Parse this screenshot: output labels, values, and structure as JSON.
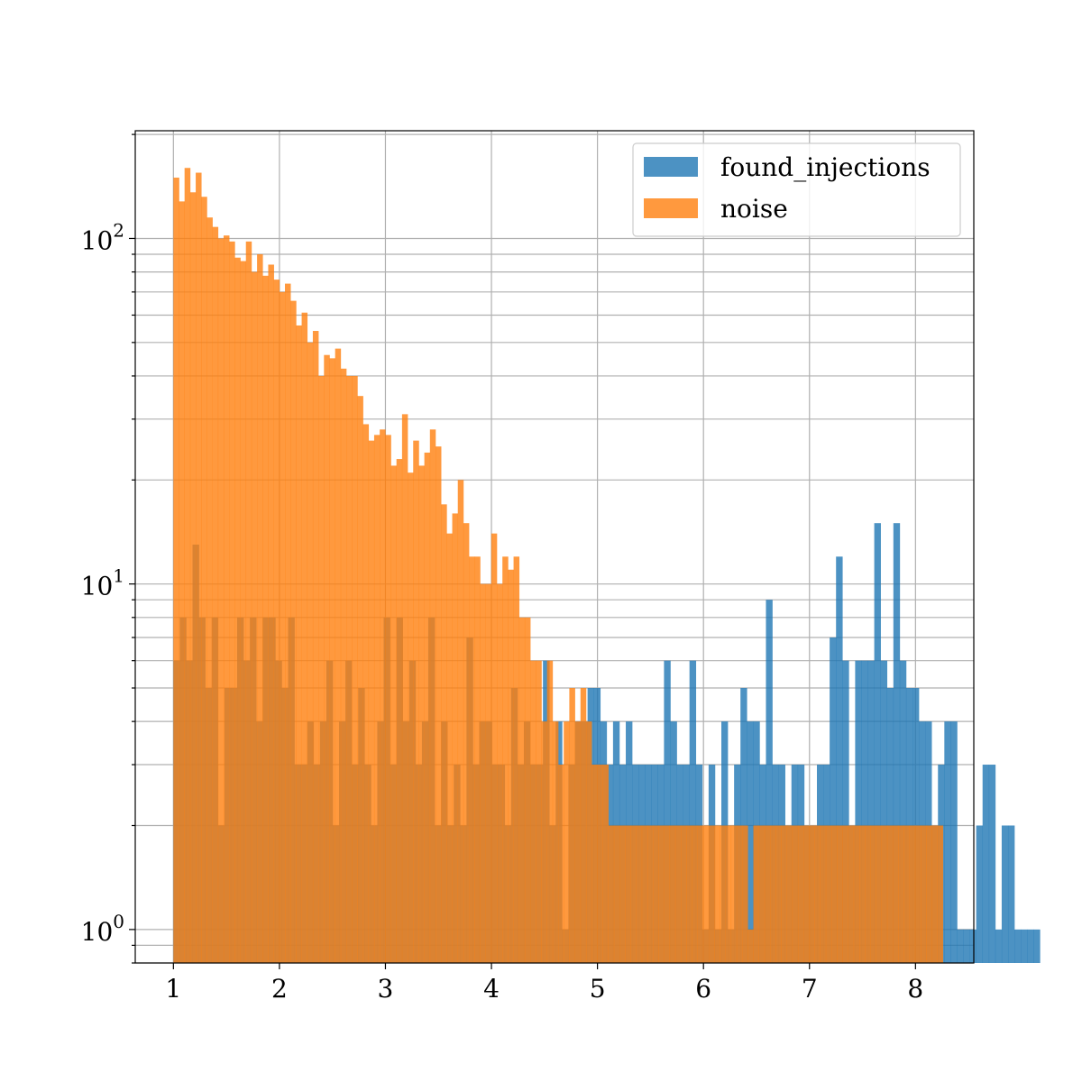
{
  "chart_data": {
    "type": "bar",
    "title": "",
    "xlabel": "",
    "ylabel": "",
    "xlim": [
      0.64,
      8.55
    ],
    "ylim": [
      0.8,
      205
    ],
    "yscale": "log",
    "grid": true,
    "legend_placement": "top-right",
    "x_ticks": [
      1,
      2,
      3,
      4,
      5,
      6,
      7,
      8
    ],
    "x_tick_labels": [
      "1",
      "2",
      "3",
      "4",
      "5",
      "6",
      "7",
      "8"
    ],
    "y_ticks": [
      1,
      10,
      100
    ],
    "y_tick_labels": [
      {
        "base": "10",
        "exp": "0"
      },
      {
        "base": "10",
        "exp": "1"
      },
      {
        "base": "10",
        "exp": "2"
      }
    ],
    "series": [
      {
        "name": "found_injections",
        "color": "#1f77b4",
        "alpha": 0.8,
        "bin_start": 1.0,
        "bin_width": 0.0601,
        "values": [
          6,
          8,
          6,
          13,
          8,
          5,
          8,
          2,
          5,
          5,
          8,
          6,
          8,
          4,
          8,
          8,
          6,
          5,
          8,
          3,
          3,
          4,
          3,
          4,
          6,
          2,
          4,
          6,
          3,
          5,
          3,
          2,
          4,
          8,
          3,
          8,
          4,
          6,
          3,
          4,
          8,
          2,
          4,
          2,
          3,
          2,
          7,
          3,
          4,
          4,
          3,
          3,
          2,
          5,
          3,
          4,
          3,
          3,
          6,
          2,
          4,
          1,
          3,
          4,
          4,
          5,
          5,
          4,
          3,
          4,
          3,
          4,
          3,
          3,
          3,
          3,
          3,
          6,
          4,
          3,
          3,
          6,
          3,
          1,
          3,
          1,
          4,
          1,
          3,
          5,
          4,
          4,
          3,
          9,
          3,
          3,
          2,
          3,
          3,
          2,
          2,
          3,
          3,
          7,
          12,
          6,
          2,
          6,
          6,
          6,
          15,
          6,
          5,
          15,
          6,
          5,
          5,
          4,
          4,
          2,
          3,
          4,
          4,
          1,
          1,
          1,
          2,
          3,
          3,
          1,
          2,
          2,
          1,
          1,
          1,
          1
        ]
      },
      {
        "name": "noise",
        "color": "#ff7f0e",
        "alpha": 0.8,
        "bin_start": 1.0,
        "bin_width": 0.0526,
        "values": [
          150,
          128,
          160,
          136,
          155,
          132,
          115,
          108,
          100,
          102,
          98,
          88,
          86,
          98,
          80,
          90,
          78,
          84,
          76,
          70,
          74,
          66,
          56,
          61,
          50,
          54,
          40,
          46,
          45,
          48,
          42,
          40,
          40,
          35,
          29,
          26,
          27,
          28,
          27,
          22,
          23,
          31,
          21,
          26,
          22,
          24,
          28,
          25,
          17,
          14,
          16,
          20,
          15,
          12,
          12,
          10,
          10,
          14,
          10,
          12,
          11,
          12,
          8,
          8,
          6,
          6,
          4,
          6,
          4,
          3,
          4,
          5,
          4,
          5,
          4,
          3,
          3,
          3,
          2,
          2,
          2,
          2,
          2,
          2,
          2,
          2,
          2,
          2,
          2,
          2,
          2,
          2,
          2,
          2,
          2,
          2,
          2,
          2,
          2,
          2,
          2,
          2,
          2,
          1,
          2,
          2,
          2,
          2,
          2,
          2,
          2,
          2,
          2,
          2,
          2,
          2,
          2,
          2,
          2,
          2,
          2,
          2,
          2,
          2,
          2,
          2,
          2,
          2,
          2,
          2,
          2,
          2,
          2,
          2,
          2,
          2,
          2,
          2
        ]
      }
    ]
  }
}
